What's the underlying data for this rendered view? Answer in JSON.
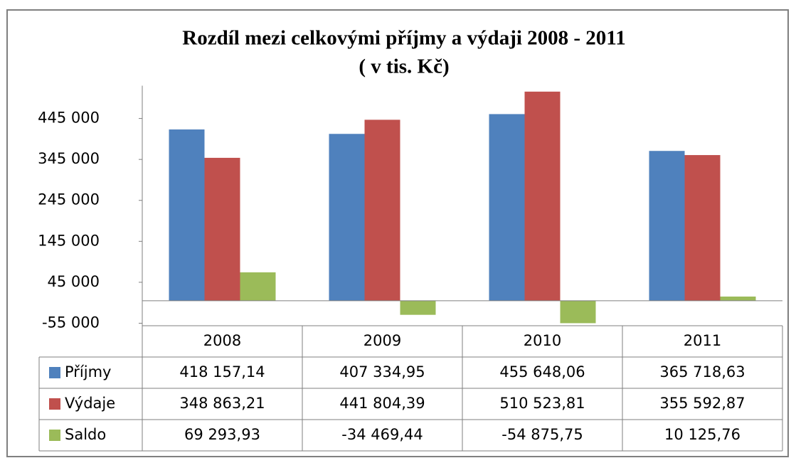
{
  "chart_data": {
    "type": "bar",
    "title": "Rozdíl mezi celkovými příjmy a výdaji  2008 - 2011",
    "subtitle": "( v tis. Kč)",
    "categories": [
      "2008",
      "2009",
      "2010",
      "2011"
    ],
    "series": [
      {
        "name": "Příjmy",
        "color": "#4f81bd",
        "values": [
          418157.14,
          407334.95,
          455648.06,
          365718.63
        ],
        "value_labels": [
          "418 157,14",
          "407 334,95",
          "455 648,06",
          "365 718,63"
        ]
      },
      {
        "name": "Výdaje",
        "color": "#c0504d",
        "values": [
          348863.21,
          441804.39,
          510523.81,
          355592.87
        ],
        "value_labels": [
          "348 863,21",
          "441 804,39",
          "510 523,81",
          "355 592,87"
        ]
      },
      {
        "name": "Saldo",
        "color": "#9bbb59",
        "values": [
          69293.93,
          -34469.44,
          -54875.75,
          10125.76
        ],
        "value_labels": [
          "69 293,93",
          "-34 469,44",
          "-54 875,75",
          "10 125,76"
        ]
      }
    ],
    "ylim": [
      -55000,
      525000
    ],
    "yticks": [
      {
        "value": -55000,
        "label": "-55 000"
      },
      {
        "value": 45000,
        "label": "45 000"
      },
      {
        "value": 145000,
        "label": "145 000"
      },
      {
        "value": 245000,
        "label": "245 000"
      },
      {
        "value": 345000,
        "label": "345 000"
      },
      {
        "value": 445000,
        "label": "445 000"
      }
    ],
    "grid": false
  }
}
